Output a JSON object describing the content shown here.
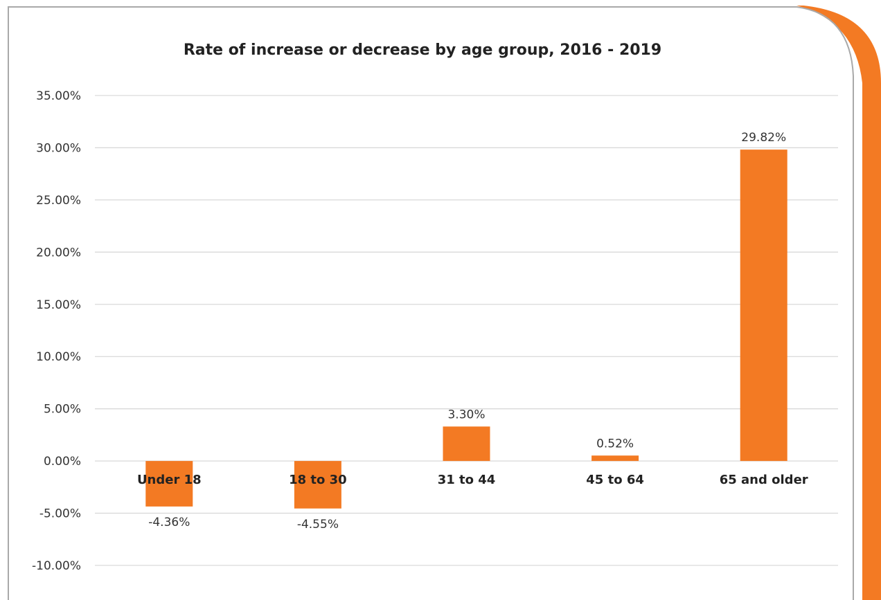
{
  "colors": {
    "bar": "#F37A23",
    "accent_shape": "#F37A23",
    "card_border": "#A9A9A9",
    "gridline": "#D9D9D9",
    "text": "#333333"
  },
  "chart_data": {
    "type": "bar",
    "title": "Rate of increase or decrease by age group, 2016 - 2019",
    "categories": [
      "Under 18",
      "18 to 30",
      "31 to 44",
      "45 to 64",
      "65 and older"
    ],
    "values": [
      -4.36,
      -4.55,
      3.3,
      0.52,
      29.82
    ],
    "data_labels": [
      "-4.36%",
      "-4.55%",
      "3.30%",
      "0.52%",
      "29.82%"
    ],
    "y_ticks": [
      "35.00%",
      "30.00%",
      "25.00%",
      "20.00%",
      "15.00%",
      "10.00%",
      "5.00%",
      "0.00%",
      "-5.00%",
      "-10.00%"
    ],
    "ylim": [
      -10,
      35
    ],
    "ytick_step": 5,
    "grid": true,
    "legend": "none"
  }
}
